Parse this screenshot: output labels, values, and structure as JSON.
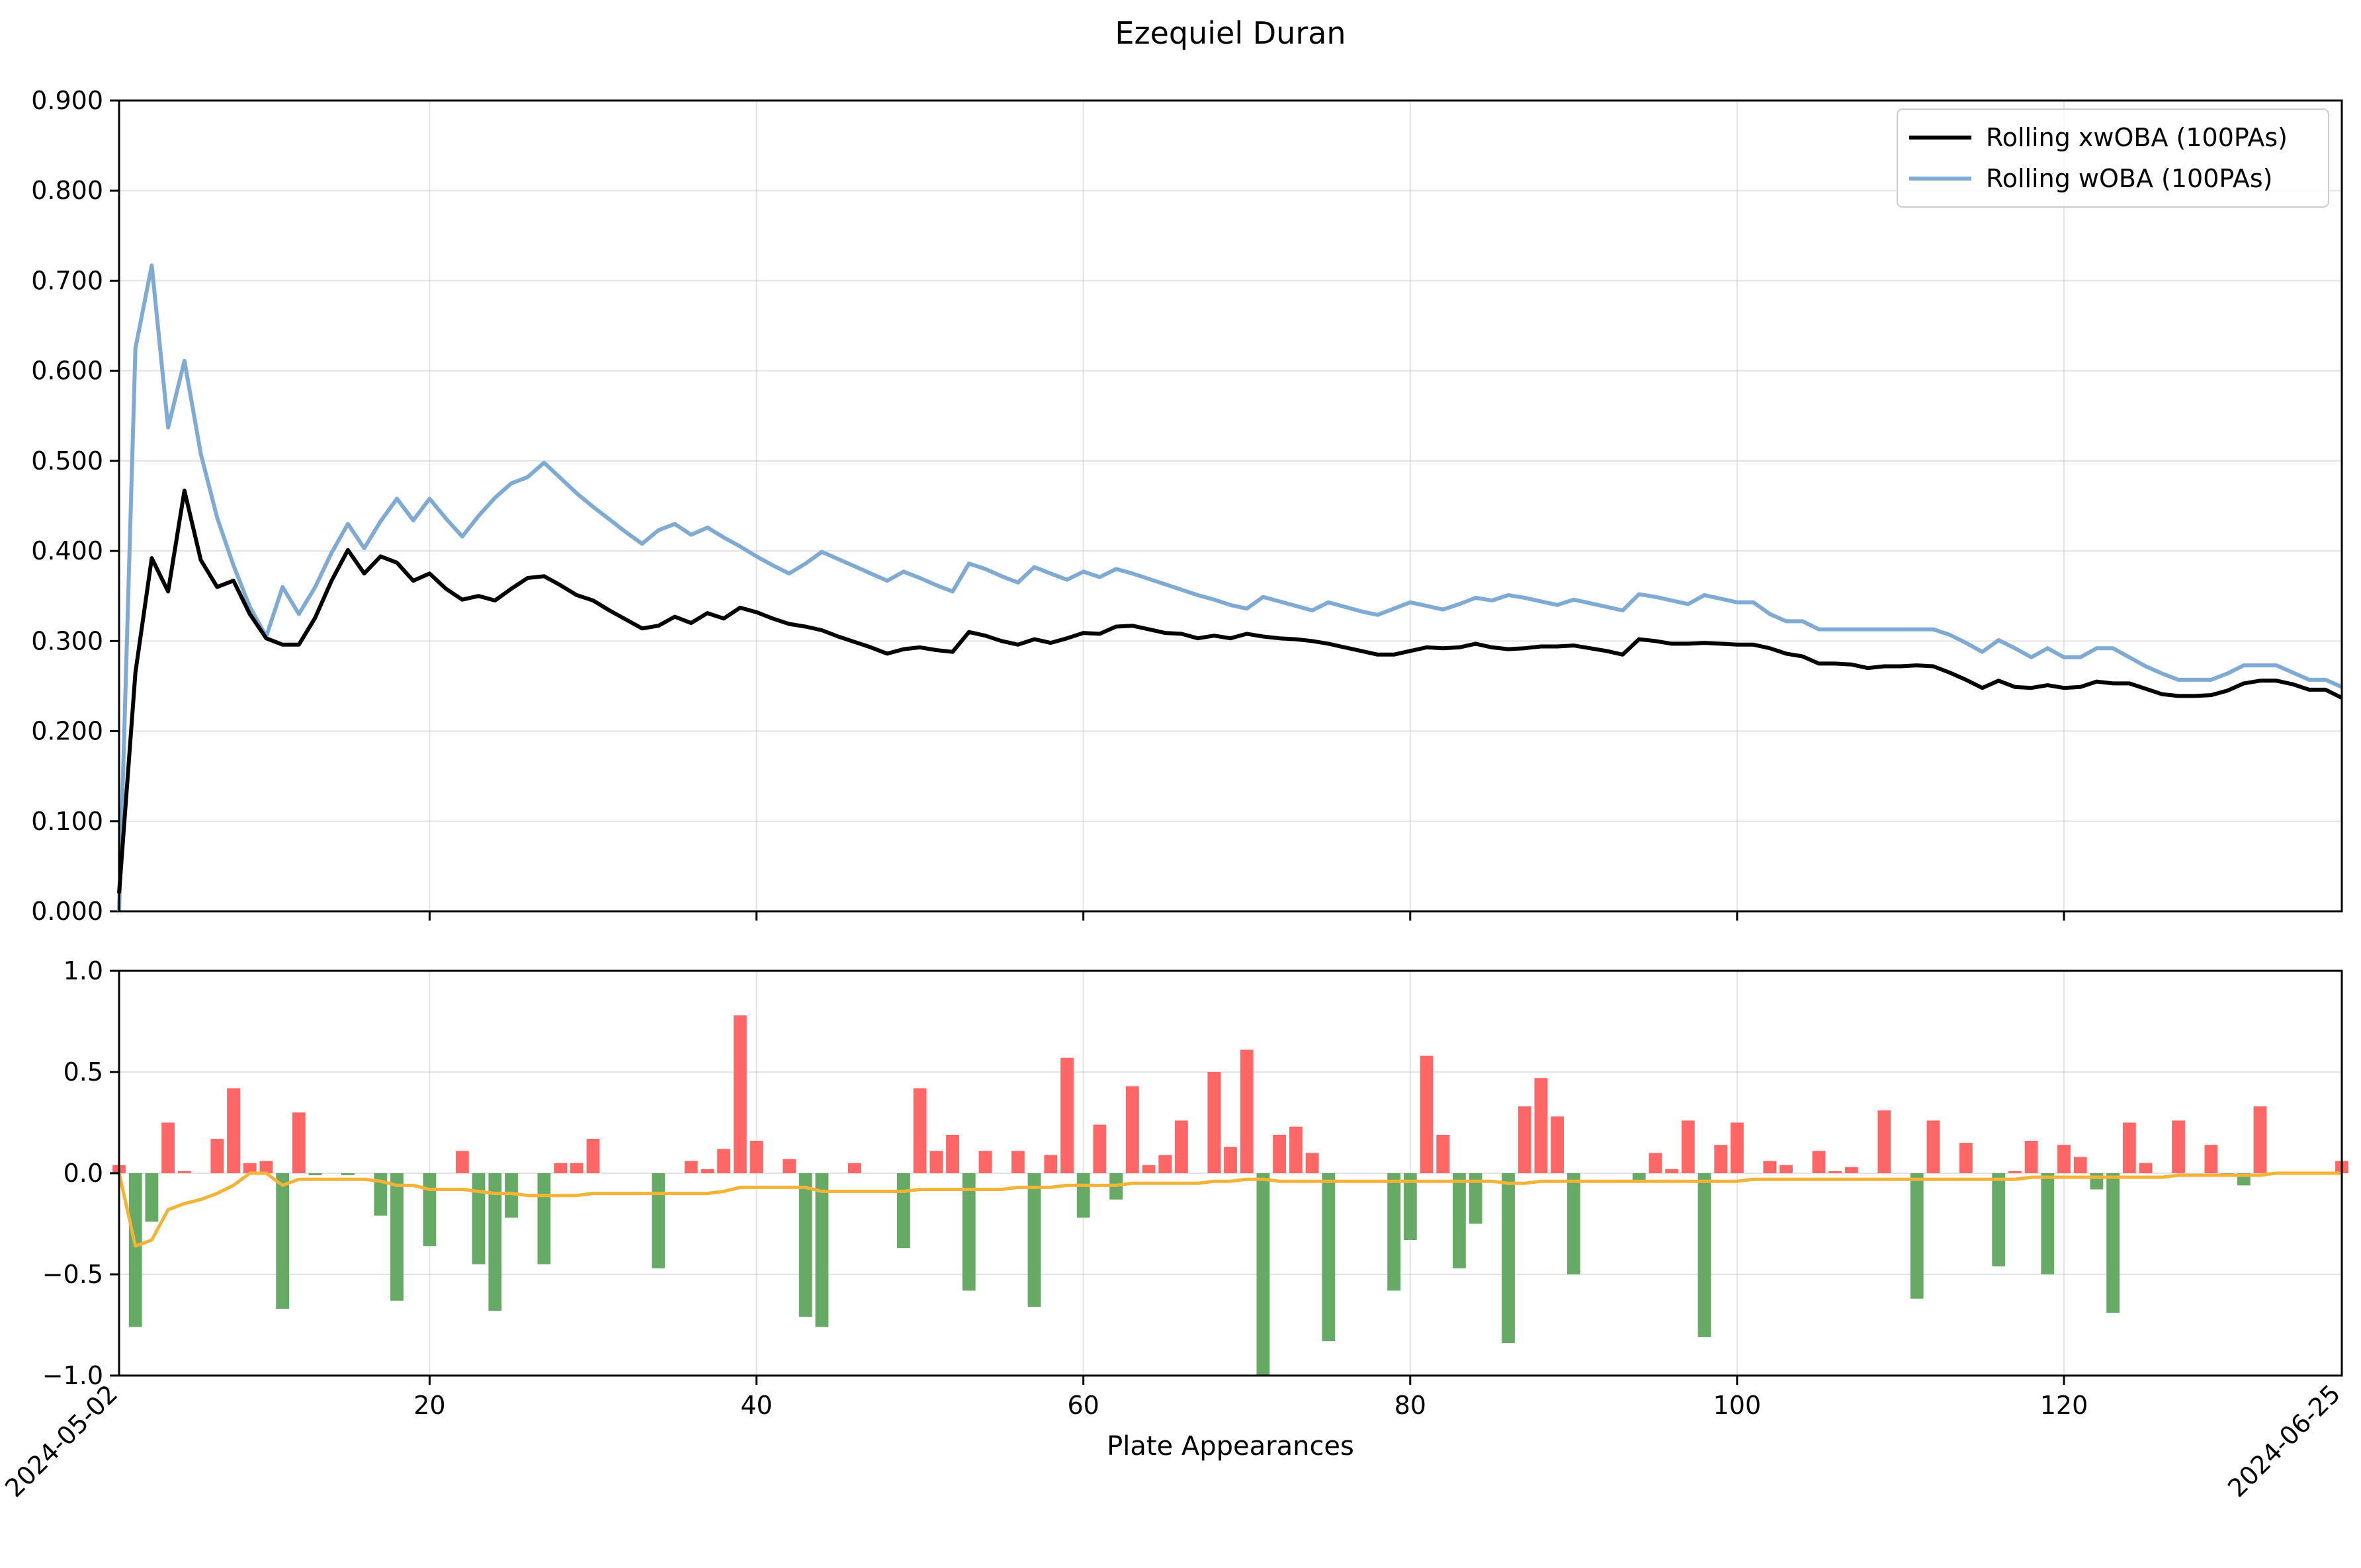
{
  "chart_data": [
    {
      "type": "line",
      "title": "Ezequiel Duran",
      "ylim": [
        0,
        0.9
      ],
      "yticks": [
        "0.000",
        "0.100",
        "0.200",
        "0.300",
        "0.400",
        "0.500",
        "0.600",
        "0.700",
        "0.800",
        "0.900"
      ],
      "ytick_values": [
        0,
        0.1,
        0.2,
        0.3,
        0.4,
        0.5,
        0.6,
        0.7,
        0.8,
        0.9
      ],
      "xlim": [
        1,
        137
      ],
      "grid": true,
      "legend_position": "top-right",
      "series": [
        {
          "name": "Rolling xwOBA (100PAs)",
          "color": "#000000",
          "x": [
            1,
            2,
            3,
            4,
            5,
            6,
            7,
            8,
            9,
            10,
            11,
            12,
            13,
            14,
            15,
            16,
            17,
            18,
            19,
            20,
            21,
            22,
            23,
            24,
            25,
            26,
            27,
            28,
            29,
            30,
            31,
            32,
            33,
            34,
            35,
            36,
            37,
            38,
            39,
            40,
            41,
            42,
            43,
            44,
            45,
            46,
            47,
            48,
            49,
            50,
            51,
            52,
            53,
            54,
            55,
            56,
            57,
            58,
            59,
            60,
            61,
            62,
            63,
            64,
            65,
            66,
            67,
            68,
            69,
            70,
            71,
            72,
            73,
            74,
            75,
            76,
            77,
            78,
            79,
            80,
            81,
            82,
            83,
            84,
            85,
            86,
            87,
            88,
            89,
            90,
            91,
            92,
            93,
            94,
            95,
            96,
            97,
            98,
            99,
            100,
            101,
            102,
            103,
            104,
            105,
            106,
            107,
            108,
            109,
            110,
            111,
            112,
            113,
            114,
            115,
            116,
            117,
            118,
            119,
            120,
            121,
            122,
            123,
            124,
            125,
            126,
            127,
            128,
            129,
            130,
            131,
            132,
            133,
            134,
            135,
            136,
            137
          ],
          "values": [
            0.02,
            0.265,
            0.392,
            0.355,
            0.467,
            0.39,
            0.36,
            0.367,
            0.33,
            0.303,
            0.296,
            0.296,
            0.326,
            0.367,
            0.401,
            0.375,
            0.394,
            0.387,
            0.367,
            0.375,
            0.358,
            0.346,
            0.35,
            0.345,
            0.358,
            0.37,
            0.372,
            0.362,
            0.351,
            0.345,
            0.334,
            0.324,
            0.314,
            0.317,
            0.327,
            0.32,
            0.331,
            0.325,
            0.337,
            0.332,
            0.325,
            0.319,
            0.316,
            0.312,
            0.305,
            0.299,
            0.293,
            0.286,
            0.291,
            0.293,
            0.29,
            0.288,
            0.31,
            0.306,
            0.3,
            0.296,
            0.302,
            0.298,
            0.303,
            0.309,
            0.308,
            0.316,
            0.317,
            0.313,
            0.309,
            0.308,
            0.303,
            0.306,
            0.303,
            0.308,
            0.305,
            0.303,
            0.302,
            0.3,
            0.297,
            0.293,
            0.289,
            0.285,
            0.285,
            0.289,
            0.293,
            0.292,
            0.293,
            0.297,
            0.293,
            0.291,
            0.292,
            0.294,
            0.294,
            0.295,
            0.292,
            0.289,
            0.285,
            0.302,
            0.3,
            0.297,
            0.297,
            0.298,
            0.297,
            0.296,
            0.296,
            0.292,
            0.286,
            0.283,
            0.275,
            0.275,
            0.274,
            0.27,
            0.272,
            0.272,
            0.273,
            0.272,
            0.265,
            0.257,
            0.248,
            0.256,
            0.249,
            0.248,
            0.251,
            0.248,
            0.249,
            0.255,
            0.253,
            0.253,
            0.247,
            0.241,
            0.239,
            0.239,
            0.24,
            0.245,
            0.253,
            0.256,
            0.256,
            0.252,
            0.246,
            0.246,
            0.237
          ]
        },
        {
          "name": "Rolling wOBA (100PAs)",
          "color": "#7eaad4",
          "x": [
            1,
            2,
            3,
            4,
            5,
            6,
            7,
            8,
            9,
            10,
            11,
            12,
            13,
            14,
            15,
            16,
            17,
            18,
            19,
            20,
            21,
            22,
            23,
            24,
            25,
            26,
            27,
            28,
            29,
            30,
            31,
            32,
            33,
            34,
            35,
            36,
            37,
            38,
            39,
            40,
            41,
            42,
            43,
            44,
            45,
            46,
            47,
            48,
            49,
            50,
            51,
            52,
            53,
            54,
            55,
            56,
            57,
            58,
            59,
            60,
            61,
            62,
            63,
            64,
            65,
            66,
            67,
            68,
            69,
            70,
            71,
            72,
            73,
            74,
            75,
            76,
            77,
            78,
            79,
            80,
            81,
            82,
            83,
            84,
            85,
            86,
            87,
            88,
            89,
            90,
            91,
            92,
            93,
            94,
            95,
            96,
            97,
            98,
            99,
            100,
            101,
            102,
            103,
            104,
            105,
            106,
            107,
            108,
            109,
            110,
            111,
            112,
            113,
            114,
            115,
            116,
            117,
            118,
            119,
            120,
            121,
            122,
            123,
            124,
            125,
            126,
            127,
            128,
            129,
            130,
            131,
            132,
            133,
            134,
            135,
            136,
            137
          ],
          "values": [
            0.0,
            0.625,
            0.717,
            0.537,
            0.611,
            0.508,
            0.437,
            0.384,
            0.338,
            0.305,
            0.36,
            0.33,
            0.36,
            0.398,
            0.43,
            0.403,
            0.433,
            0.458,
            0.434,
            0.458,
            0.436,
            0.416,
            0.439,
            0.459,
            0.475,
            0.482,
            0.498,
            0.481,
            0.464,
            0.449,
            0.435,
            0.421,
            0.408,
            0.423,
            0.43,
            0.418,
            0.426,
            0.415,
            0.405,
            0.394,
            0.384,
            0.375,
            0.386,
            0.399,
            0.391,
            0.383,
            0.375,
            0.367,
            0.377,
            0.37,
            0.362,
            0.355,
            0.386,
            0.38,
            0.372,
            0.365,
            0.382,
            0.375,
            0.368,
            0.377,
            0.371,
            0.38,
            0.375,
            0.369,
            0.363,
            0.357,
            0.351,
            0.346,
            0.34,
            0.336,
            0.349,
            0.344,
            0.339,
            0.334,
            0.343,
            0.338,
            0.333,
            0.329,
            0.336,
            0.343,
            0.339,
            0.335,
            0.341,
            0.348,
            0.345,
            0.351,
            0.348,
            0.344,
            0.34,
            0.346,
            0.342,
            0.338,
            0.334,
            0.352,
            0.349,
            0.345,
            0.341,
            0.351,
            0.347,
            0.343,
            0.343,
            0.33,
            0.322,
            0.322,
            0.313,
            0.313,
            0.313,
            0.313,
            0.313,
            0.313,
            0.313,
            0.313,
            0.307,
            0.298,
            0.288,
            0.301,
            0.292,
            0.282,
            0.292,
            0.282,
            0.282,
            0.292,
            0.292,
            0.282,
            0.272,
            0.264,
            0.257,
            0.257,
            0.257,
            0.264,
            0.273,
            0.273,
            0.273,
            0.265,
            0.257,
            0.257,
            0.249
          ]
        }
      ]
    },
    {
      "type": "bar",
      "xlabel": "Plate Appearances",
      "ylim": [
        -1.0,
        1.0
      ],
      "yticks": [
        "−1.0",
        "−0.5",
        "0.0",
        "0.5",
        "1.0"
      ],
      "ytick_values": [
        -1.0,
        -0.5,
        0,
        0.5,
        1.0
      ],
      "xlim": [
        1,
        137
      ],
      "xticks": [
        "20",
        "40",
        "60",
        "80",
        "100",
        "120"
      ],
      "xtick_values": [
        20,
        40,
        60,
        80,
        100,
        120
      ],
      "date_labels": [
        {
          "x": 1,
          "label": "2024-05-02"
        },
        {
          "x": 137,
          "label": "2024-06-25"
        }
      ],
      "grid": true,
      "positive_color": "#ff6666",
      "negative_color": "#66aa66",
      "line_color": "#f5b335",
      "x": [
        1,
        2,
        3,
        4,
        5,
        6,
        7,
        8,
        9,
        10,
        11,
        12,
        13,
        14,
        15,
        16,
        17,
        18,
        19,
        20,
        21,
        22,
        23,
        24,
        25,
        26,
        27,
        28,
        29,
        30,
        31,
        32,
        33,
        34,
        35,
        36,
        37,
        38,
        39,
        40,
        41,
        42,
        43,
        44,
        45,
        46,
        47,
        48,
        49,
        50,
        51,
        52,
        53,
        54,
        55,
        56,
        57,
        58,
        59,
        60,
        61,
        62,
        63,
        64,
        65,
        66,
        67,
        68,
        69,
        70,
        71,
        72,
        73,
        74,
        75,
        76,
        77,
        78,
        79,
        80,
        81,
        82,
        83,
        84,
        85,
        86,
        87,
        88,
        89,
        90,
        91,
        92,
        93,
        94,
        95,
        96,
        97,
        98,
        99,
        100,
        101,
        102,
        103,
        104,
        105,
        106,
        107,
        108,
        109,
        110,
        111,
        112,
        113,
        114,
        115,
        116,
        117,
        118,
        119,
        120,
        121,
        122,
        123,
        124,
        125,
        126,
        127,
        128,
        129,
        130,
        131,
        132,
        133,
        134,
        135,
        136,
        137
      ],
      "values": [
        0.04,
        -0.76,
        -0.24,
        0.25,
        0.01,
        0.0,
        0.17,
        0.42,
        0.05,
        0.06,
        -0.67,
        0.3,
        -0.01,
        0.0,
        -0.01,
        0.0,
        -0.21,
        -0.63,
        0.0,
        -0.36,
        0.0,
        0.11,
        -0.45,
        -0.68,
        -0.22,
        0.0,
        -0.45,
        0.05,
        0.05,
        0.17,
        0.0,
        0.0,
        0.0,
        -0.47,
        0.0,
        0.06,
        0.02,
        0.12,
        0.78,
        0.16,
        0.0,
        0.07,
        -0.71,
        -0.76,
        0.0,
        0.05,
        0.0,
        0.0,
        -0.37,
        0.42,
        0.11,
        0.19,
        -0.58,
        0.11,
        0.0,
        0.11,
        -0.66,
        0.09,
        0.57,
        -0.22,
        0.24,
        -0.13,
        0.43,
        0.04,
        0.09,
        0.26,
        0.0,
        0.5,
        0.13,
        0.61,
        -1.0,
        0.19,
        0.23,
        0.1,
        -0.83,
        0.0,
        0.0,
        0.0,
        -0.58,
        -0.33,
        0.58,
        0.19,
        -0.47,
        -0.25,
        0.0,
        -0.84,
        0.33,
        0.47,
        0.28,
        -0.5,
        0.0,
        0.0,
        0.0,
        -0.04,
        0.1,
        0.02,
        0.26,
        -0.81,
        0.14,
        0.25,
        0.0,
        0.06,
        0.04,
        0.0,
        0.11,
        0.01,
        0.03,
        0.0,
        0.31,
        0.0,
        -0.62,
        0.26,
        0.0,
        0.15,
        0.0,
        -0.46,
        0.01,
        0.16,
        -0.5,
        0.14,
        0.08,
        -0.08,
        -0.69,
        0.25,
        0.05,
        0.0,
        0.26,
        0.0,
        0.14,
        -0.01,
        -0.06,
        0.33,
        0.0,
        0.0,
        0.0,
        0.0,
        0.06
      ],
      "line_values": [
        0.0,
        -0.36,
        -0.33,
        -0.18,
        -0.15,
        -0.13,
        -0.1,
        -0.06,
        0.0,
        0.0,
        -0.06,
        -0.03,
        -0.03,
        -0.03,
        -0.03,
        -0.03,
        -0.04,
        -0.06,
        -0.06,
        -0.08,
        -0.08,
        -0.08,
        -0.09,
        -0.1,
        -0.1,
        -0.11,
        -0.11,
        -0.11,
        -0.11,
        -0.1,
        -0.1,
        -0.1,
        -0.1,
        -0.1,
        -0.1,
        -0.1,
        -0.1,
        -0.09,
        -0.07,
        -0.07,
        -0.07,
        -0.07,
        -0.07,
        -0.09,
        -0.09,
        -0.09,
        -0.09,
        -0.09,
        -0.09,
        -0.08,
        -0.08,
        -0.08,
        -0.08,
        -0.08,
        -0.08,
        -0.07,
        -0.07,
        -0.07,
        -0.06,
        -0.06,
        -0.06,
        -0.06,
        -0.05,
        -0.05,
        -0.05,
        -0.05,
        -0.05,
        -0.04,
        -0.04,
        -0.03,
        -0.03,
        -0.04,
        -0.04,
        -0.04,
        -0.04,
        -0.04,
        -0.04,
        -0.04,
        -0.04,
        -0.04,
        -0.04,
        -0.04,
        -0.04,
        -0.04,
        -0.04,
        -0.05,
        -0.05,
        -0.04,
        -0.04,
        -0.04,
        -0.04,
        -0.04,
        -0.04,
        -0.04,
        -0.04,
        -0.04,
        -0.04,
        -0.04,
        -0.04,
        -0.04,
        -0.03,
        -0.03,
        -0.03,
        -0.03,
        -0.03,
        -0.03,
        -0.03,
        -0.03,
        -0.03,
        -0.03,
        -0.03,
        -0.03,
        -0.03,
        -0.03,
        -0.03,
        -0.03,
        -0.03,
        -0.02,
        -0.02,
        -0.02,
        -0.02,
        -0.02,
        -0.02,
        -0.02,
        -0.02,
        -0.02,
        -0.01,
        -0.01,
        -0.01,
        -0.01,
        -0.01,
        -0.01,
        0.0,
        0.0,
        0.0,
        0.0,
        0.0
      ]
    }
  ]
}
